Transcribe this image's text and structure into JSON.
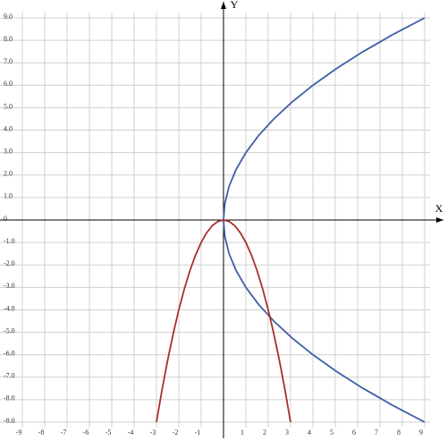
{
  "chart_data": {
    "type": "line",
    "x_label": "X",
    "y_label": "Y",
    "xlim": [
      -9,
      9
    ],
    "ylim": [
      -9,
      9
    ],
    "xticks": [
      -9,
      -8,
      -7,
      -6,
      -5,
      -4,
      -3,
      -2,
      -1,
      1,
      2,
      3,
      4,
      5,
      6,
      7,
      8,
      9
    ],
    "yticks": [
      {
        "value": 9,
        "label": "9.0"
      },
      {
        "value": 8,
        "label": "8.0"
      },
      {
        "value": 7,
        "label": "7.0"
      },
      {
        "value": 6,
        "label": "6.0"
      },
      {
        "value": 5,
        "label": "5.0"
      },
      {
        "value": 4,
        "label": "4.0"
      },
      {
        "value": 3,
        "label": "3.0"
      },
      {
        "value": 2,
        "label": "2.0"
      },
      {
        "value": 1,
        "label": "1.0"
      },
      0,
      {
        "value": -1,
        "label": "-1.0"
      },
      {
        "value": -2,
        "label": "-2.0"
      },
      {
        "value": -3,
        "label": "-3.0"
      },
      {
        "value": -4,
        "label": "-4.0"
      },
      {
        "value": -5,
        "label": "-5.0"
      },
      {
        "value": -6,
        "label": "-6.0"
      },
      {
        "value": -7,
        "label": "-7.0"
      },
      {
        "value": -8,
        "label": "-8.0"
      },
      {
        "value": -9,
        "label": "-9.0"
      }
    ],
    "grid": true,
    "series": [
      {
        "color": "#3f5fa6",
        "x": [
          9,
          7.5625,
          6.25,
          5.0625,
          4,
          3.0625,
          2.25,
          1.5625,
          1,
          0.5625,
          0.25,
          0.0625,
          0,
          0.0625,
          0.25,
          0.5625,
          1,
          1.5625,
          2.25,
          3.0625,
          4,
          5.0625,
          6.25,
          7.5625,
          9
        ],
        "values": [
          -9,
          -8.25,
          -7.5,
          -6.75,
          -6,
          -5.25,
          -4.5,
          -3.75,
          -3,
          -2.25,
          -1.5,
          -0.75,
          0,
          0.75,
          1.5,
          2.25,
          3,
          3.75,
          4.5,
          5.25,
          6,
          6.75,
          7.5,
          8.25,
          9
        ]
      },
      {
        "color": "#a8302c",
        "x": [
          -3,
          -2.75,
          -2.5,
          -2.25,
          -2,
          -1.75,
          -1.5,
          -1.25,
          -1,
          -0.75,
          -0.5,
          -0.25,
          0,
          0.25,
          0.5,
          0.75,
          1,
          1.25,
          1.5,
          1.75,
          2,
          2.25,
          2.5,
          2.75,
          3
        ],
        "values": [
          -9,
          -7.5625,
          -6.25,
          -5.0625,
          -4,
          -3.0625,
          -2.25,
          -1.5625,
          -1,
          -0.5625,
          -0.25,
          -0.0625,
          0,
          -0.0625,
          -0.25,
          -0.5625,
          -1,
          -1.5625,
          -2.25,
          -3.0625,
          -4,
          -5.0625,
          -6.25,
          -7.5625,
          -9
        ]
      }
    ]
  }
}
